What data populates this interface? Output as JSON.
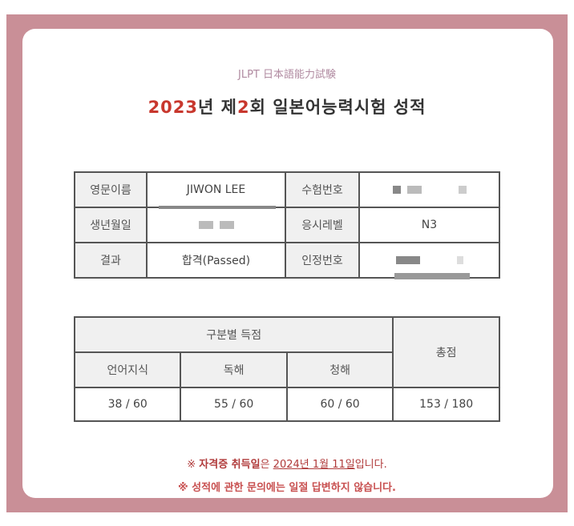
{
  "header": {
    "subtitle": "JLPT 日本語能力試験",
    "title_year": "2023",
    "title_year_suffix": "년 제",
    "title_round": "2",
    "title_rest": "회 일본어능력시험 성적"
  },
  "info": {
    "name_label": "영문이름",
    "name_value": "JIWON LEE",
    "exam_no_label": "수험번호",
    "birth_label": "생년월일",
    "level_label": "응시레벨",
    "level_value": "N3",
    "result_label": "결과",
    "result_value": "합격(Passed)",
    "cert_no_label": "인정번호"
  },
  "scores": {
    "section_header": "구분별 득점",
    "total_header": "총점",
    "columns": [
      "언어지식",
      "독해",
      "청해"
    ],
    "values": [
      "38 / 60",
      "55 / 60",
      "60 / 60"
    ],
    "total": "153 / 180"
  },
  "notes": {
    "note1_prefix": "※ ",
    "note1_bold": "자격증 취득일",
    "note1_mid": "은 ",
    "note1_date": "2024년 1월 11일",
    "note1_suffix": "입니다.",
    "note2": "※ 성적에 관한 문의에는 일절 답변하지 않습니다."
  },
  "colors": {
    "frame": "#c98f97",
    "accent": "#c8372d"
  }
}
